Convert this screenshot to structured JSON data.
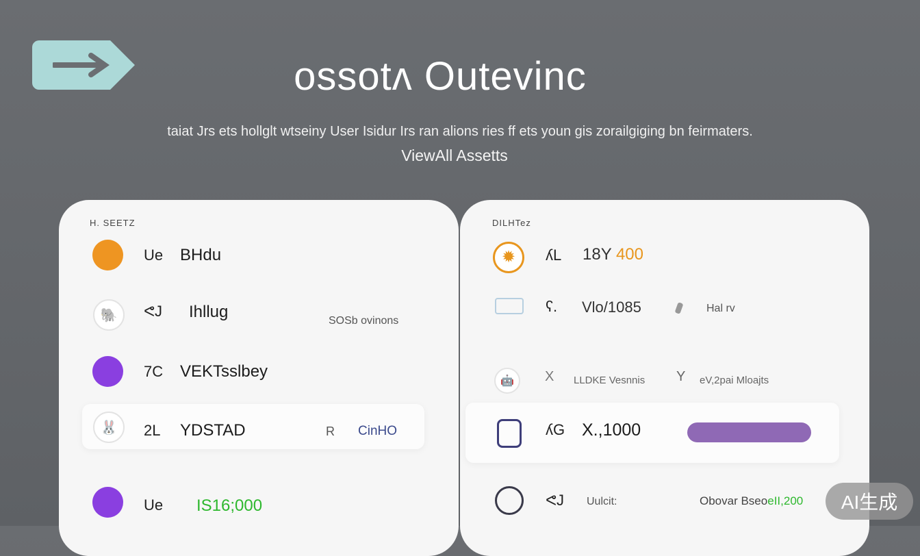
{
  "header": {
    "back_icon": "arrow-right-icon",
    "title": "ossotʌ Outevinc",
    "subtitle": "taiat Jrs ets hollglt wtseiny User Isidur Irs ran alions ries ff ets youn gis zorailgiging bn feirmaters.",
    "view_all_label": "ViewAll Assetts"
  },
  "left_card": {
    "label": "H. SEETZ",
    "rows": [
      {
        "icon": "orange-circle",
        "color": "#ee9522",
        "code": "Ue",
        "name": "BHdu",
        "extra": ""
      },
      {
        "icon": "elephant-icon",
        "code": "ᕙJ",
        "name": "Ihllug",
        "extra": "SOSb ovinons"
      },
      {
        "icon": "purple-circle",
        "color": "#8a3fe0",
        "code": "7C",
        "name": "VEKTsslbey",
        "extra": ""
      },
      {
        "icon": "rabbit-icon",
        "code": "2L",
        "name": "YDSTAD",
        "extra_icon": "R",
        "extra": "CinHO"
      },
      {
        "icon": "purple-circle",
        "color": "#8a3fe0",
        "code": "Ue",
        "name": "IS16;000",
        "name_color": "#2eb82e"
      }
    ]
  },
  "right_card": {
    "label": "DILHTez",
    "rows": [
      {
        "icon": "orange-badge-icon",
        "code": "ʎL",
        "value": "18Y",
        "value_hl": "400",
        "value_hl_color": "#e8961e"
      },
      {
        "icon": "card-icon",
        "code": "ʕ.",
        "value": "Vlo/1085",
        "extra_icon": "pen-icon",
        "extra": "Hal rv"
      },
      {
        "icon": "robot-icon",
        "code": "X",
        "value": "LLDKE Vesnnis",
        "extra_icon": "Y",
        "extra": "eV,2pai Mloajts"
      },
      {
        "icon": "backpack-icon",
        "code": "ʎG",
        "value": "X.,1000",
        "progress": 1.0,
        "bar_color": "#8f69b5"
      },
      {
        "icon": "bag-icon",
        "code": "ᕙJ",
        "value": "Uulcit:",
        "extra": "Obovar Bseo",
        "extra_hl": "eII,200",
        "extra_hl_color": "#2eb82e"
      }
    ]
  },
  "watermark": "AI生成"
}
